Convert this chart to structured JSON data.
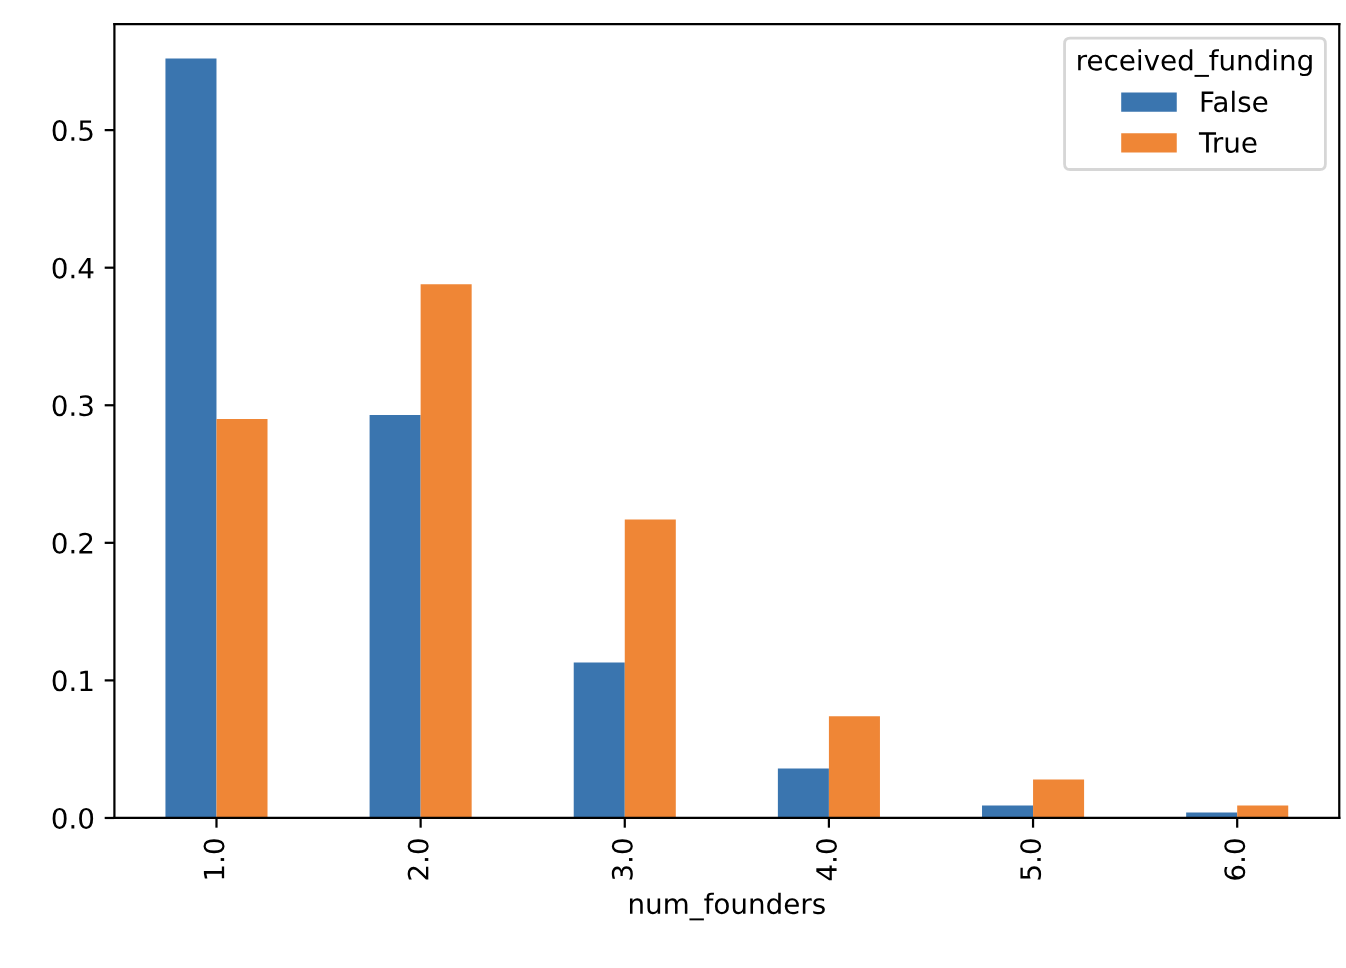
{
  "chart_data": {
    "type": "bar",
    "xlabel": "num_founders",
    "legend_title": "received_funding",
    "categories": [
      "1.0",
      "2.0",
      "3.0",
      "4.0",
      "5.0",
      "6.0"
    ],
    "series": [
      {
        "name": "False",
        "color": "#3a75af",
        "values": [
          0.552,
          0.293,
          0.113,
          0.036,
          0.009,
          0.004
        ]
      },
      {
        "name": "True",
        "color": "#ef8636",
        "values": [
          0.29,
          0.388,
          0.217,
          0.074,
          0.028,
          0.009
        ]
      }
    ],
    "ylim": [
      0,
      0.577
    ],
    "yticks": [
      {
        "value": 0,
        "label": "0.0"
      },
      0.1,
      0.2,
      0.3,
      0.4,
      0.5
    ],
    "grid": false,
    "legend": "top right"
  }
}
